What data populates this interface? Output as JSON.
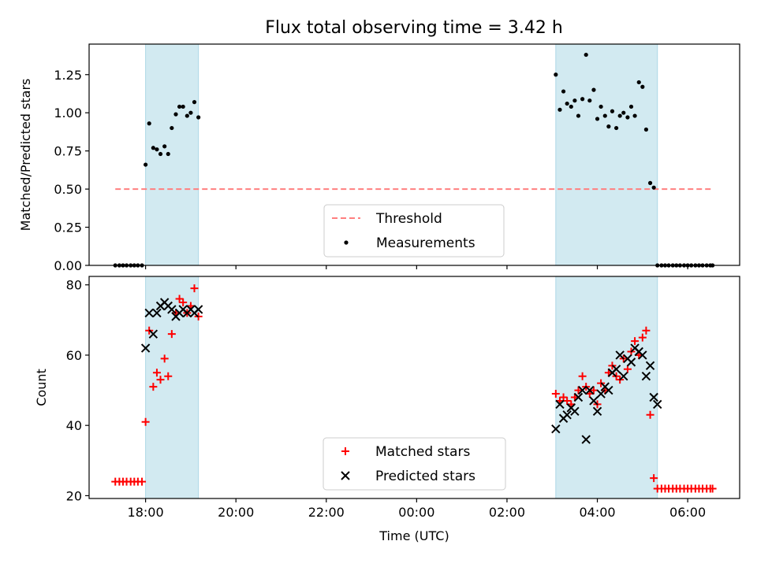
{
  "title": "Flux total observing time = 3.42 h",
  "colors": {
    "band": "#add8e6",
    "threshold": "#ff7f7f",
    "matched": "#ff0000",
    "predicted": "#000000",
    "measurement": "#000000"
  },
  "chart_data": [
    {
      "type": "scatter",
      "ylabel": "Matched/Predicted stars",
      "ylim": [
        0,
        1.45
      ],
      "xlim_hours": [
        16.75,
        31.15
      ],
      "yticks": [
        0.0,
        0.25,
        0.5,
        0.75,
        1.0,
        1.25
      ],
      "ytick_labels": [
        "0.00",
        "0.25",
        "0.50",
        "0.75",
        "1.00",
        "1.25"
      ],
      "legend": {
        "position": "bottom-center",
        "entries": [
          "Threshold",
          "Measurements"
        ]
      },
      "shaded_intervals_hours": [
        [
          18.0,
          19.17
        ],
        [
          27.08,
          29.33
        ]
      ],
      "threshold": {
        "name": "Threshold",
        "value": 0.5,
        "x_range_hours": [
          17.33,
          30.55
        ]
      },
      "series": [
        {
          "name": "Measurements",
          "marker": "dot",
          "x_hours": [
            17.33,
            17.42,
            17.5,
            17.58,
            17.67,
            17.75,
            17.83,
            17.92,
            18.0,
            18.08,
            18.17,
            18.25,
            18.33,
            18.42,
            18.5,
            18.58,
            18.67,
            18.75,
            18.83,
            18.92,
            19.0,
            19.08,
            19.17,
            27.08,
            27.17,
            27.25,
            27.33,
            27.42,
            27.5,
            27.58,
            27.67,
            27.75,
            27.83,
            27.92,
            28.0,
            28.08,
            28.17,
            28.25,
            28.33,
            28.42,
            28.5,
            28.58,
            28.67,
            28.75,
            28.83,
            28.92,
            29.0,
            29.08,
            29.17,
            29.25,
            29.33,
            29.42,
            29.5,
            29.58,
            29.67,
            29.75,
            29.83,
            29.92,
            30.0,
            30.08,
            30.17,
            30.25,
            30.33,
            30.42,
            30.5,
            30.55
          ],
          "y": [
            0,
            0,
            0,
            0,
            0,
            0,
            0,
            0,
            0.66,
            0.93,
            0.77,
            0.76,
            0.73,
            0.78,
            0.73,
            0.9,
            0.99,
            1.04,
            1.04,
            0.98,
            1.0,
            1.07,
            0.97,
            1.25,
            1.02,
            1.14,
            1.06,
            1.04,
            1.08,
            0.98,
            1.09,
            1.38,
            1.08,
            1.15,
            0.96,
            1.04,
            0.98,
            0.91,
            1.01,
            0.9,
            0.98,
            1.0,
            0.97,
            1.04,
            0.98,
            1.2,
            1.17,
            0.89,
            0.54,
            0.51,
            0,
            0,
            0,
            0,
            0,
            0,
            0,
            0,
            0,
            0,
            0,
            0,
            0,
            0,
            0,
            0
          ]
        }
      ]
    },
    {
      "type": "scatter",
      "ylabel": "Count",
      "xlabel": "Time (UTC)",
      "ylim": [
        19.2,
        82.4
      ],
      "xlim_hours": [
        16.75,
        31.15
      ],
      "yticks": [
        20,
        40,
        60,
        80
      ],
      "ytick_labels": [
        "20",
        "40",
        "60",
        "80"
      ],
      "xticks_hours": [
        18,
        20,
        22,
        24,
        26,
        28,
        30
      ],
      "xtick_labels": [
        "18:00",
        "20:00",
        "22:00",
        "00:00",
        "02:00",
        "04:00",
        "06:00"
      ],
      "legend": {
        "position": "bottom-center",
        "entries": [
          "Matched stars",
          "Predicted stars"
        ]
      },
      "shaded_intervals_hours": [
        [
          18.0,
          19.17
        ],
        [
          27.08,
          29.33
        ]
      ],
      "series": [
        {
          "name": "Matched stars",
          "marker": "plus",
          "x_hours": [
            17.33,
            17.42,
            17.5,
            17.58,
            17.67,
            17.75,
            17.83,
            17.92,
            18.0,
            18.08,
            18.17,
            18.25,
            18.33,
            18.42,
            18.5,
            18.58,
            18.67,
            18.75,
            18.83,
            18.92,
            19.0,
            19.08,
            19.17,
            27.08,
            27.17,
            27.25,
            27.33,
            27.42,
            27.5,
            27.58,
            27.67,
            27.75,
            27.83,
            27.92,
            28.0,
            28.08,
            28.17,
            28.25,
            28.33,
            28.42,
            28.5,
            28.58,
            28.67,
            28.75,
            28.83,
            28.92,
            29.0,
            29.08,
            29.17,
            29.25,
            29.33,
            29.42,
            29.5,
            29.58,
            29.67,
            29.75,
            29.83,
            29.92,
            30.0,
            30.08,
            30.17,
            30.25,
            30.33,
            30.42,
            30.5,
            30.55
          ],
          "y": [
            24,
            24,
            24,
            24,
            24,
            24,
            24,
            24,
            41,
            67,
            51,
            55,
            53,
            59,
            54,
            66,
            72,
            76,
            75,
            72,
            74,
            79,
            71,
            49,
            47,
            48,
            47,
            46,
            48,
            50,
            54,
            51,
            49,
            50,
            46,
            52,
            50,
            55,
            57,
            54,
            53,
            59,
            56,
            61,
            64,
            60,
            65,
            67,
            43,
            25,
            22,
            22,
            22,
            22,
            22,
            22,
            22,
            22,
            22,
            22,
            22,
            22,
            22,
            22,
            22,
            22
          ]
        },
        {
          "name": "Predicted stars",
          "marker": "x",
          "x_hours": [
            18.0,
            18.08,
            18.17,
            18.25,
            18.33,
            18.42,
            18.5,
            18.58,
            18.67,
            18.75,
            18.83,
            18.92,
            19.0,
            19.08,
            19.17,
            27.08,
            27.17,
            27.25,
            27.33,
            27.42,
            27.5,
            27.58,
            27.67,
            27.75,
            27.83,
            27.92,
            28.0,
            28.08,
            28.17,
            28.25,
            28.33,
            28.42,
            28.5,
            28.58,
            28.67,
            28.75,
            28.83,
            28.92,
            29.0,
            29.08,
            29.17,
            29.25,
            29.33
          ],
          "y": [
            62,
            72,
            66,
            72,
            74,
            75,
            74,
            73,
            71,
            72,
            73,
            72,
            73,
            72,
            73,
            39,
            46,
            42,
            43,
            45,
            44,
            48,
            50,
            36,
            50,
            47,
            44,
            49,
            51,
            50,
            55,
            56,
            60,
            54,
            59,
            58,
            62,
            61,
            60,
            54,
            57,
            48,
            46
          ]
        }
      ]
    }
  ]
}
